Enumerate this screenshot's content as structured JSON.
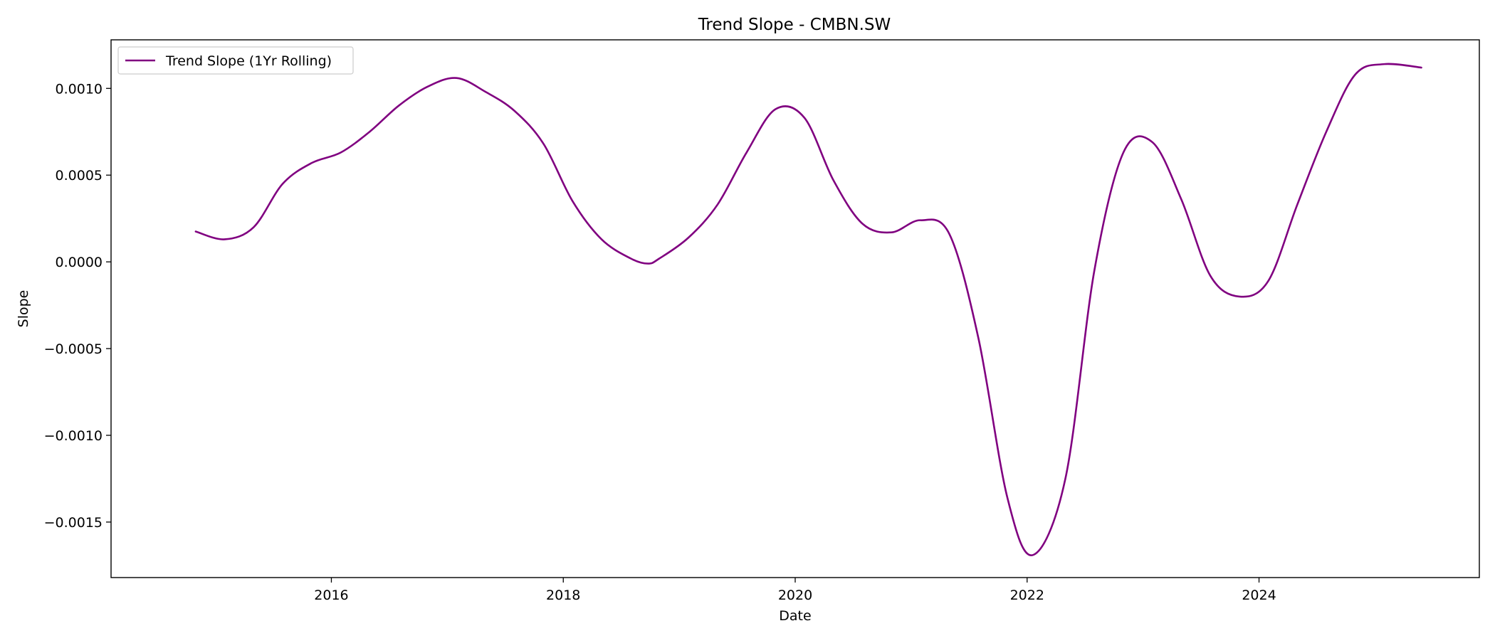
{
  "chart_data": {
    "type": "line",
    "title": "Trend Slope - CMBN.SW",
    "xlabel": "Date",
    "ylabel": "Slope",
    "grid": false,
    "legend_position": "upper-left",
    "xlim": [
      2014.1,
      2025.9
    ],
    "ylim": [
      -0.00182,
      0.00128
    ],
    "x_ticks": [
      2016,
      2018,
      2020,
      2022,
      2024
    ],
    "x_tick_labels": [
      "2016",
      "2018",
      "2020",
      "2022",
      "2024"
    ],
    "y_ticks": [
      0.001,
      0.0005,
      0.0,
      -0.0005,
      -0.001,
      -0.0015
    ],
    "y_tick_labels": [
      "0.0010",
      "0.0005",
      "0.0000",
      "−0.0005",
      "−0.0010",
      "−0.0015"
    ],
    "series": [
      {
        "name": "Trend Slope (1Yr Rolling)",
        "color": "#800080",
        "x": [
          2014.83,
          2015.08,
          2015.33,
          2015.58,
          2015.83,
          2016.08,
          2016.33,
          2016.58,
          2016.83,
          2017.08,
          2017.33,
          2017.58,
          2017.83,
          2018.08,
          2018.33,
          2018.58,
          2018.73,
          2018.83,
          2019.08,
          2019.33,
          2019.58,
          2019.83,
          2020.08,
          2020.33,
          2020.58,
          2020.83,
          2021.08,
          2021.33,
          2021.58,
          2021.83,
          2022.05,
          2022.33,
          2022.58,
          2022.83,
          2023.08,
          2023.33,
          2023.58,
          2023.83,
          2024.08,
          2024.33,
          2024.58,
          2024.83,
          2025.08,
          2025.4
        ],
        "y": [
          0.000175,
          0.00013,
          0.0002,
          0.00045,
          0.00057,
          0.00063,
          0.00075,
          0.0009,
          0.00101,
          0.00106,
          0.00098,
          0.00087,
          0.00068,
          0.00035,
          0.00013,
          2e-05,
          -1e-05,
          2e-05,
          0.00014,
          0.00033,
          0.00063,
          0.00088,
          0.00083,
          0.00047,
          0.00022,
          0.00017,
          0.00024,
          0.00016,
          -0.00044,
          -0.00136,
          -0.00169,
          -0.00125,
          -5e-05,
          0.00063,
          0.00069,
          0.00036,
          -8e-05,
          -0.0002,
          -0.00011,
          0.00033,
          0.00075,
          0.00108,
          0.00114,
          0.00112
        ]
      }
    ]
  }
}
